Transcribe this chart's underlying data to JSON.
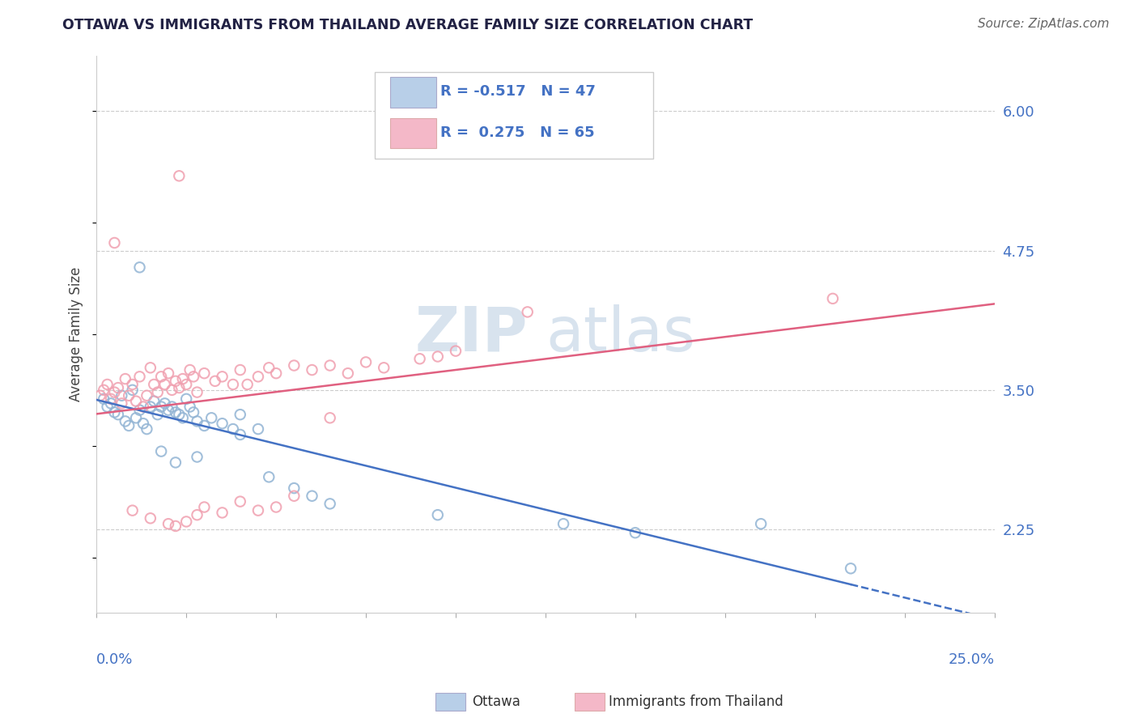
{
  "title": "OTTAWA VS IMMIGRANTS FROM THAILAND AVERAGE FAMILY SIZE CORRELATION CHART",
  "source": "Source: ZipAtlas.com",
  "ylabel": "Average Family Size",
  "xmin": 0.0,
  "xmax": 0.25,
  "ymin": 1.5,
  "ymax": 6.5,
  "yticks": [
    2.25,
    3.5,
    4.75,
    6.0
  ],
  "xtick_positions": [
    0.0,
    0.025,
    0.05,
    0.075,
    0.1,
    0.125,
    0.15,
    0.175,
    0.2,
    0.225,
    0.25
  ],
  "xticklabels_show": [
    "0.0%",
    "25.0%"
  ],
  "watermark_zip": "ZIP",
  "watermark_atlas": "atlas",
  "ottawa_color": "#92b4d4",
  "thailand_color": "#f0a0b0",
  "ottawa_line_color": "#4472c4",
  "thailand_line_color": "#e06080",
  "grid_color": "#cccccc",
  "title_color": "#222244",
  "axis_label_color": "#4472c4",
  "tick_label_color": "#4472c4",
  "background_color": "#ffffff",
  "legend_blue_color": "#b8cfe8",
  "legend_pink_color": "#f4b8c8",
  "ottawa_points": [
    [
      0.002,
      3.42
    ],
    [
      0.003,
      3.35
    ],
    [
      0.004,
      3.38
    ],
    [
      0.005,
      3.3
    ],
    [
      0.006,
      3.28
    ],
    [
      0.007,
      3.45
    ],
    [
      0.008,
      3.22
    ],
    [
      0.009,
      3.18
    ],
    [
      0.01,
      3.5
    ],
    [
      0.011,
      3.25
    ],
    [
      0.012,
      3.32
    ],
    [
      0.013,
      3.2
    ],
    [
      0.014,
      3.15
    ],
    [
      0.015,
      3.35
    ],
    [
      0.016,
      3.4
    ],
    [
      0.017,
      3.28
    ],
    [
      0.018,
      3.35
    ],
    [
      0.019,
      3.38
    ],
    [
      0.02,
      3.32
    ],
    [
      0.021,
      3.35
    ],
    [
      0.022,
      3.3
    ],
    [
      0.023,
      3.28
    ],
    [
      0.024,
      3.25
    ],
    [
      0.025,
      3.42
    ],
    [
      0.026,
      3.35
    ],
    [
      0.027,
      3.3
    ],
    [
      0.028,
      3.22
    ],
    [
      0.03,
      3.18
    ],
    [
      0.032,
      3.25
    ],
    [
      0.035,
      3.2
    ],
    [
      0.038,
      3.15
    ],
    [
      0.04,
      3.28
    ],
    [
      0.012,
      4.6
    ],
    [
      0.018,
      2.95
    ],
    [
      0.022,
      2.85
    ],
    [
      0.028,
      2.9
    ],
    [
      0.04,
      3.1
    ],
    [
      0.045,
      3.15
    ],
    [
      0.048,
      2.72
    ],
    [
      0.055,
      2.62
    ],
    [
      0.06,
      2.55
    ],
    [
      0.065,
      2.48
    ],
    [
      0.095,
      2.38
    ],
    [
      0.13,
      2.3
    ],
    [
      0.15,
      2.22
    ],
    [
      0.185,
      2.3
    ],
    [
      0.21,
      1.9
    ]
  ],
  "thailand_points": [
    [
      0.001,
      3.45
    ],
    [
      0.002,
      3.5
    ],
    [
      0.003,
      3.55
    ],
    [
      0.004,
      3.42
    ],
    [
      0.005,
      3.48
    ],
    [
      0.006,
      3.52
    ],
    [
      0.007,
      3.38
    ],
    [
      0.008,
      3.6
    ],
    [
      0.009,
      3.45
    ],
    [
      0.01,
      3.55
    ],
    [
      0.011,
      3.4
    ],
    [
      0.012,
      3.62
    ],
    [
      0.013,
      3.35
    ],
    [
      0.014,
      3.45
    ],
    [
      0.015,
      3.7
    ],
    [
      0.016,
      3.55
    ],
    [
      0.017,
      3.48
    ],
    [
      0.018,
      3.62
    ],
    [
      0.019,
      3.55
    ],
    [
      0.02,
      3.65
    ],
    [
      0.021,
      3.5
    ],
    [
      0.022,
      3.58
    ],
    [
      0.023,
      3.52
    ],
    [
      0.024,
      3.6
    ],
    [
      0.025,
      3.55
    ],
    [
      0.026,
      3.68
    ],
    [
      0.027,
      3.62
    ],
    [
      0.028,
      3.48
    ],
    [
      0.03,
      3.65
    ],
    [
      0.033,
      3.58
    ],
    [
      0.035,
      3.62
    ],
    [
      0.038,
      3.55
    ],
    [
      0.04,
      3.68
    ],
    [
      0.042,
      3.55
    ],
    [
      0.045,
      3.62
    ],
    [
      0.048,
      3.7
    ],
    [
      0.05,
      3.65
    ],
    [
      0.055,
      3.72
    ],
    [
      0.06,
      3.68
    ],
    [
      0.065,
      3.72
    ],
    [
      0.07,
      3.65
    ],
    [
      0.075,
      3.75
    ],
    [
      0.08,
      3.7
    ],
    [
      0.09,
      3.78
    ],
    [
      0.095,
      3.8
    ],
    [
      0.1,
      3.85
    ],
    [
      0.005,
      4.82
    ],
    [
      0.023,
      5.42
    ],
    [
      0.01,
      2.42
    ],
    [
      0.015,
      2.35
    ],
    [
      0.02,
      2.3
    ],
    [
      0.022,
      2.28
    ],
    [
      0.025,
      2.32
    ],
    [
      0.028,
      2.38
    ],
    [
      0.03,
      2.45
    ],
    [
      0.035,
      2.4
    ],
    [
      0.04,
      2.5
    ],
    [
      0.045,
      2.42
    ],
    [
      0.05,
      2.45
    ],
    [
      0.055,
      2.55
    ],
    [
      0.12,
      4.2
    ],
    [
      0.205,
      4.32
    ],
    [
      0.065,
      3.25
    ]
  ]
}
